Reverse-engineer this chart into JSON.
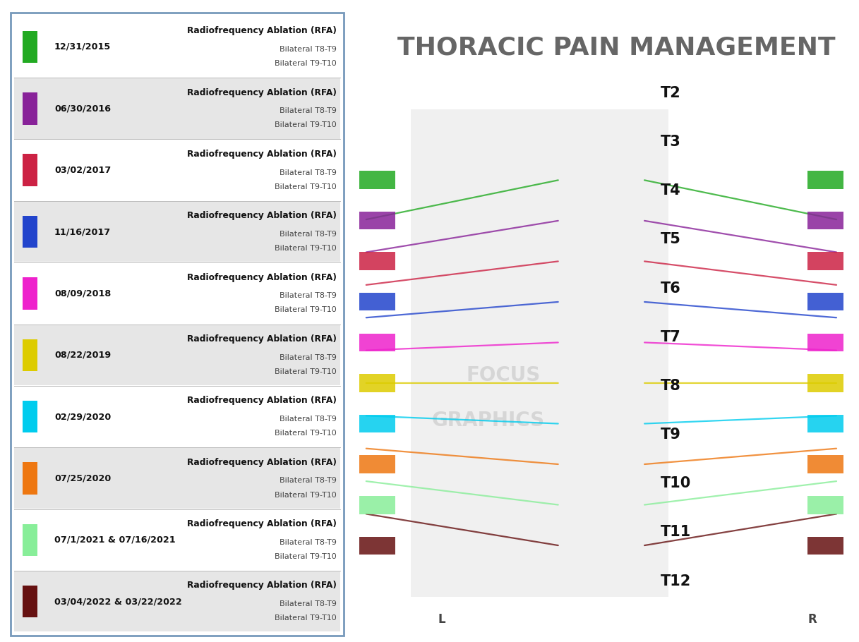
{
  "title": "THORACIC PAIN MANAGEMENT",
  "title_fontsize": 26,
  "title_color": "#666666",
  "background_color": "#ffffff",
  "panel_bg": "#ffffff",
  "panel_border": "#7799bb",
  "entries": [
    {
      "date": "12/31/2015",
      "color": "#22aa22",
      "procedure": "Radiofrequency Ablation (RFA)",
      "line2": "Bilateral T8-T9",
      "line3": "Bilateral T9-T10",
      "row_bg": "#ffffff"
    },
    {
      "date": "06/30/2016",
      "color": "#882299",
      "procedure": "Radiofrequency Ablation (RFA)",
      "line2": "Bilateral T8-T9",
      "line3": "Bilateral T9-T10",
      "row_bg": "#e6e6e6"
    },
    {
      "date": "03/02/2017",
      "color": "#cc2244",
      "procedure": "Radiofrequency Ablation (RFA)",
      "line2": "Bilateral T8-T9",
      "line3": "Bilateral T9-T10",
      "row_bg": "#ffffff"
    },
    {
      "date": "11/16/2017",
      "color": "#2244cc",
      "procedure": "Radiofrequency Ablation (RFA)",
      "line2": "Bilateral T8-T9",
      "line3": "Bilateral T9-T10",
      "row_bg": "#e6e6e6"
    },
    {
      "date": "08/09/2018",
      "color": "#ee22cc",
      "procedure": "Radiofrequency Ablation (RFA)",
      "line2": "Bilateral T8-T9",
      "line3": "Bilateral T9-T10",
      "row_bg": "#ffffff"
    },
    {
      "date": "08/22/2019",
      "color": "#ddcc00",
      "procedure": "Radiofrequency Ablation (RFA)",
      "line2": "Bilateral T8-T9",
      "line3": "Bilateral T9-T10",
      "row_bg": "#e6e6e6"
    },
    {
      "date": "02/29/2020",
      "color": "#00ccee",
      "procedure": "Radiofrequency Ablation (RFA)",
      "line2": "Bilateral T8-T9",
      "line3": "Bilateral T9-T10",
      "row_bg": "#ffffff"
    },
    {
      "date": "07/25/2020",
      "color": "#ee7711",
      "procedure": "Radiofrequency Ablation (RFA)",
      "line2": "Bilateral T8-T9",
      "line3": "Bilateral T9-T10",
      "row_bg": "#e6e6e6"
    },
    {
      "date": "07/1/2021 & 07/16/2021",
      "color": "#88ee99",
      "procedure": "Radiofrequency Ablation (RFA)",
      "line2": "Bilateral T8-T9",
      "line3": "Bilateral T9-T10",
      "row_bg": "#ffffff"
    },
    {
      "date": "03/04/2022 & 03/22/2022",
      "color": "#661111",
      "procedure": "Radiofrequency Ablation (RFA)",
      "line2": "Bilateral T8-T9",
      "line3": "Bilateral T9-T10",
      "row_bg": "#e6e6e6"
    }
  ],
  "spine_labels": [
    "T2",
    "T3",
    "T4",
    "T5",
    "T6",
    "T7",
    "T8",
    "T9",
    "T10",
    "T11",
    "T12"
  ],
  "needle_colors": [
    "#22aa22",
    "#882299",
    "#cc2244",
    "#2244cc",
    "#ee22cc",
    "#ddcc00",
    "#00ccee",
    "#ee7711",
    "#88ee99",
    "#661111"
  ],
  "right_bg": "#f0ece4",
  "watermark_color": "#cccccc"
}
